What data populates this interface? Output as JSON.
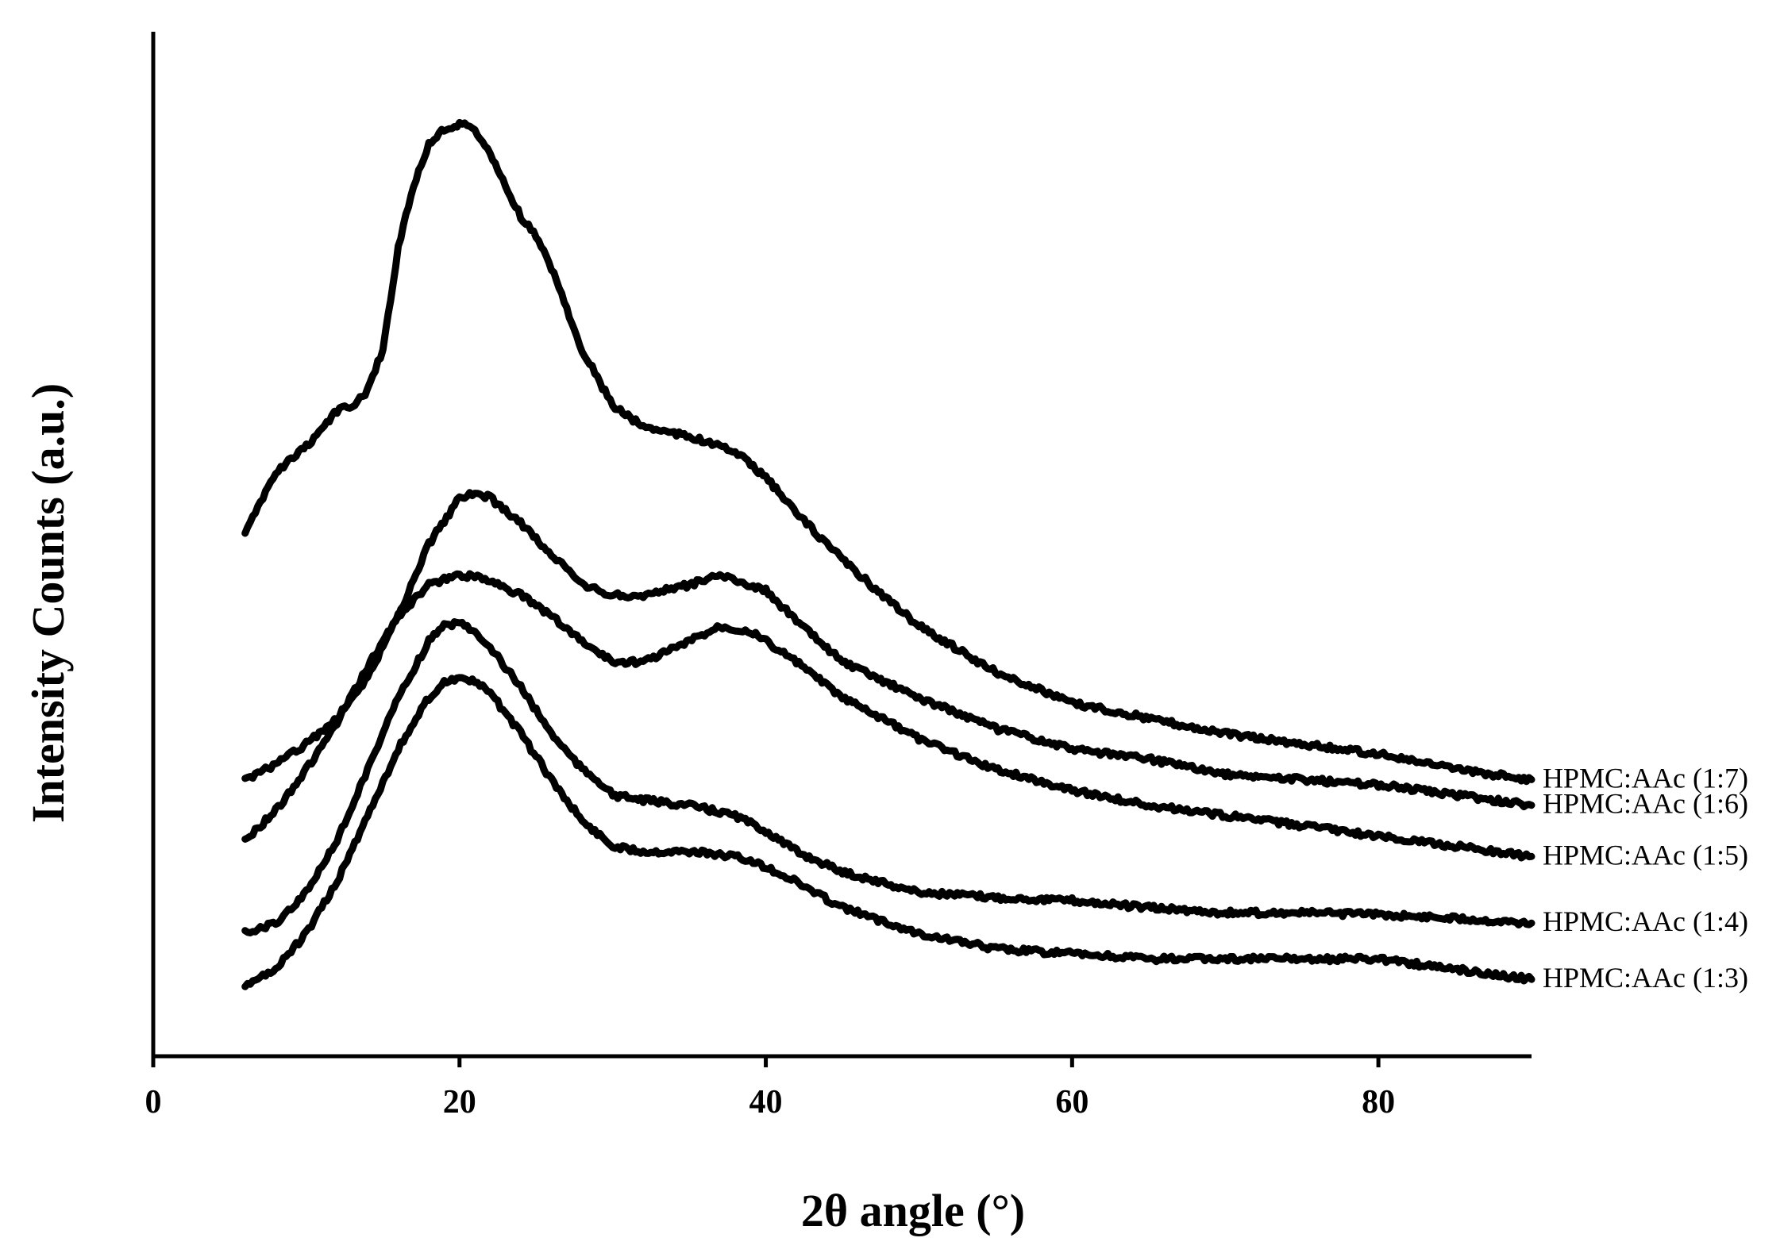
{
  "chart_data": {
    "type": "line",
    "xlabel": "2θ angle (°)",
    "ylabel": "Intensity Counts (a.u.)",
    "xlim": [
      0,
      90
    ],
    "x_ticks": [
      0,
      20,
      40,
      60,
      80
    ],
    "ylim": [
      0,
      100
    ],
    "y_ticks_shown": false,
    "grid": false,
    "legend": "series labels at right end of each trace",
    "series": [
      {
        "name": "HPMC:AAc (1:7)",
        "x": [
          6,
          8,
          10,
          12,
          13,
          14,
          15,
          16,
          17,
          18,
          19,
          20,
          21,
          22,
          23,
          24,
          25,
          26,
          28,
          30,
          32,
          35,
          38,
          40,
          42,
          45,
          48,
          50,
          55,
          60,
          65,
          70,
          75,
          80,
          85,
          90
        ],
        "y": [
          51,
          57,
          59.5,
          63,
          63.5,
          65,
          69,
          79,
          85,
          89,
          90.5,
          91,
          90.5,
          88,
          85,
          82,
          80,
          77,
          69,
          63.5,
          61.5,
          60.5,
          59,
          56.5,
          53,
          48.5,
          44.5,
          42,
          37.5,
          34.5,
          33,
          31.5,
          30.5,
          29.5,
          28,
          27
        ]
      },
      {
        "name": "HPMC:AAc (1:6)",
        "x": [
          6,
          8,
          10,
          12,
          14,
          16,
          18,
          20,
          21,
          22,
          24,
          26,
          28,
          30,
          32,
          35,
          37,
          40,
          42,
          45,
          50,
          55,
          60,
          65,
          70,
          75,
          80,
          85,
          90
        ],
        "y": [
          27,
          28.5,
          30.5,
          33,
          37,
          43,
          50,
          54.5,
          55,
          54.5,
          52,
          49,
          46,
          45,
          45,
          46,
          47,
          45.5,
          42.5,
          38.5,
          35,
          32,
          30,
          29,
          27.5,
          27,
          26.5,
          25.5,
          24.5
        ]
      },
      {
        "name": "HPMC:AAc (1:5)",
        "x": [
          6,
          8,
          10,
          12,
          14,
          16,
          18,
          20,
          22,
          24,
          26,
          28,
          30,
          32,
          35,
          37,
          39,
          42,
          45,
          50,
          55,
          60,
          65,
          70,
          75,
          80,
          85,
          90
        ],
        "y": [
          21,
          24,
          28,
          32.5,
          38,
          43,
          46,
          47,
          46.5,
          45,
          43,
          40.5,
          38.5,
          38.5,
          40.5,
          42,
          41.5,
          38.5,
          35,
          31,
          28,
          26,
          24.5,
          23.5,
          22.5,
          21.5,
          20.5,
          19.5
        ]
      },
      {
        "name": "HPMC:AAc (1:4)",
        "x": [
          6,
          8,
          10,
          12,
          14,
          16,
          18,
          19,
          20,
          21,
          22,
          24,
          26,
          28,
          29,
          30,
          32,
          35,
          38,
          40,
          42,
          45,
          50,
          55,
          60,
          65,
          70,
          75,
          80,
          85,
          90
        ],
        "y": [
          12,
          13,
          16,
          21,
          28,
          35,
          40.5,
          42,
          42.3,
          41.5,
          40,
          36,
          31.5,
          28,
          27,
          25.5,
          25,
          24.5,
          23.5,
          22,
          20,
          18,
          16,
          15.5,
          15.2,
          14.5,
          14,
          14,
          13.8,
          13.5,
          13
        ]
      },
      {
        "name": "HPMC:AAc (1:3)",
        "x": [
          6,
          8,
          10,
          12,
          14,
          16,
          18,
          19,
          20,
          21,
          22,
          24,
          26,
          28,
          30,
          32,
          35,
          38,
          40,
          42,
          45,
          50,
          55,
          60,
          65,
          70,
          75,
          80,
          85,
          90
        ],
        "y": [
          7,
          8.5,
          12,
          17,
          23.5,
          30,
          35,
          36.5,
          37,
          36.5,
          35.5,
          31.5,
          27,
          23,
          20.5,
          20,
          20,
          19.5,
          18.5,
          17,
          14.5,
          12,
          10.5,
          10,
          9.5,
          9.5,
          9.5,
          9.5,
          8.5,
          7.5
        ]
      }
    ]
  }
}
